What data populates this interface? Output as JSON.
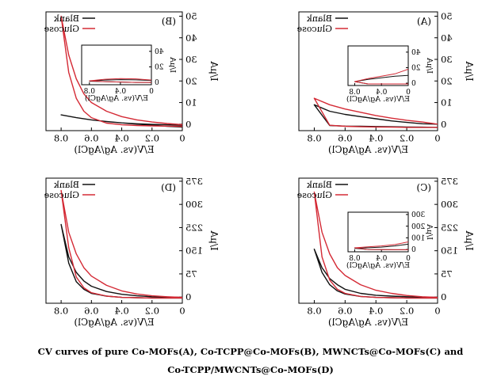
{
  "caption": {
    "line1": "CV curves of pure Co-MOFs(A), Co-TCPP@Co-MOFs(B), MWNCTs@Co-MOFs(C) and",
    "line2": "Co-TCPP/MWCNTs@Co-MOFs(D)"
  },
  "colors": {
    "blank": "#111111",
    "glucose": "#d42a35"
  },
  "chart_data": [
    {
      "panel": "A",
      "type": "line",
      "xlabel": "E/V(vs. Ag/AgCl)",
      "ylabel": "I/μA",
      "xlim": [
        0,
        0.9
      ],
      "ylim": [
        -3,
        52
      ],
      "xticks": [
        "0",
        "0.2",
        "0.4",
        "0.6",
        "0.8"
      ],
      "yticks": [
        "0",
        "10",
        "20",
        "30",
        "40",
        "50"
      ],
      "legend": "top-left",
      "series": [
        {
          "name": "Blank",
          "x": [
            0,
            0.1,
            0.2,
            0.3,
            0.4,
            0.5,
            0.6,
            0.7,
            0.8,
            0.8,
            0.7,
            0.6,
            0.5,
            0.4,
            0.3,
            0.2,
            0.1,
            0
          ],
          "y": [
            -1.5,
            -1.4,
            -1.3,
            -1.2,
            -1.1,
            -1.0,
            -0.9,
            -0.6,
            9,
            9,
            6,
            4.5,
            3.5,
            2.5,
            1.5,
            0.8,
            0.2,
            0
          ]
        },
        {
          "name": "Glucose",
          "x": [
            0,
            0.1,
            0.2,
            0.3,
            0.4,
            0.5,
            0.6,
            0.7,
            0.8,
            0.8,
            0.7,
            0.6,
            0.5,
            0.4,
            0.3,
            0.2,
            0.1,
            0
          ],
          "y": [
            -1.5,
            -1.5,
            -1.5,
            -1.4,
            -1.3,
            -1.2,
            -1.0,
            -0.5,
            12,
            12,
            9,
            7,
            5.5,
            4,
            2.8,
            1.8,
            1,
            0
          ]
        }
      ],
      "inset": {
        "xlabel": "E/V(vs. Ag/AgCl)",
        "ylabel": "I/μA",
        "xlim": [
          0,
          0.9
        ],
        "ylim": [
          -3,
          48
        ],
        "xticks": [
          "0",
          "0.4",
          "0.8"
        ],
        "yticks": [
          "0",
          "20",
          "40"
        ],
        "series": [
          {
            "name": "Blank",
            "x": [
              0,
              0.2,
              0.4,
              0.6,
              0.8,
              0.8,
              0.6,
              0.4,
              0.2,
              0
            ],
            "y": [
              -1,
              -1,
              -1,
              -1,
              2,
              2,
              5,
              7,
              9,
              10
            ]
          },
          {
            "name": "Glucose",
            "x": [
              0,
              0.2,
              0.4,
              0.6,
              0.8,
              0.8,
              0.6,
              0.4,
              0.2,
              0
            ],
            "y": [
              -1,
              -1,
              -1,
              -1,
              2,
              2,
              6,
              9,
              12,
              18
            ]
          }
        ]
      }
    },
    {
      "panel": "B",
      "type": "line",
      "xlabel": "E/V(vs. Ag/AgCl)",
      "ylabel": "I/μA",
      "xlim": [
        0,
        0.9
      ],
      "ylim": [
        -3,
        52
      ],
      "xticks": [
        "0",
        "0.2",
        "0.4",
        "0.6",
        "0.8"
      ],
      "yticks": [
        "0",
        "10",
        "20",
        "30",
        "40",
        "50"
      ],
      "legend": "top-left",
      "series": [
        {
          "name": "Blank",
          "x": [
            0,
            0.1,
            0.2,
            0.3,
            0.4,
            0.5,
            0.6,
            0.7,
            0.8,
            0.8,
            0.7,
            0.6,
            0.5,
            0.4,
            0.3,
            0.2,
            0.1,
            0
          ],
          "y": [
            -1.3,
            -1.0,
            -0.5,
            0,
            0.6,
            1.2,
            2,
            3,
            4.3,
            4.3,
            3,
            2,
            1.2,
            0.6,
            0.2,
            -0.1,
            -0.3,
            -0.5
          ]
        },
        {
          "name": "Glucose",
          "x": [
            0,
            0.1,
            0.2,
            0.3,
            0.4,
            0.5,
            0.6,
            0.65,
            0.7,
            0.75,
            0.8,
            0.8,
            0.75,
            0.7,
            0.65,
            0.6,
            0.5,
            0.4,
            0.3,
            0.2,
            0.1,
            0
          ],
          "y": [
            -1.0,
            -0.9,
            -0.8,
            -0.6,
            -0.3,
            0.5,
            3,
            6,
            12,
            24,
            50,
            50,
            32,
            21,
            14,
            10,
            6,
            3.5,
            2,
            1,
            0.3,
            -0.2
          ]
        }
      ],
      "inset": {
        "xlabel": "E/V(vs. Ag/AgCl)",
        "ylabel": "I/μA",
        "xlim": [
          0,
          0.9
        ],
        "ylim": [
          -3,
          48
        ],
        "xticks": [
          "0",
          "0.4",
          "0.8"
        ],
        "yticks": [
          "0",
          "20",
          "40"
        ],
        "series": [
          {
            "name": "Blank",
            "x": [
              0,
              0.2,
              0.4,
              0.6,
              0.8,
              0.8,
              0.6,
              0.4,
              0.2,
              0
            ],
            "y": [
              0,
              0,
              0.5,
              1,
              1.5,
              1.5,
              3,
              3.5,
              3.2,
              2.5
            ]
          },
          {
            "name": "Glucose",
            "x": [
              0,
              0.2,
              0.4,
              0.6,
              0.8,
              0.8,
              0.6,
              0.4,
              0.2,
              0
            ],
            "y": [
              0,
              0,
              0.5,
              1,
              2,
              2,
              4,
              5,
              4.5,
              3
            ]
          }
        ]
      }
    },
    {
      "panel": "C",
      "type": "line",
      "xlabel": "E/V(vs. Ag/AgCl)",
      "ylabel": "I/μA",
      "xlim": [
        0,
        0.9
      ],
      "ylim": [
        -20,
        385
      ],
      "xticks": [
        "0",
        "0.2",
        "0.4",
        "0.6",
        "0.8"
      ],
      "yticks": [
        "0",
        "75",
        "150",
        "225",
        "300",
        "375"
      ],
      "legend": "top-left",
      "series": [
        {
          "name": "Blank",
          "x": [
            0,
            0.1,
            0.2,
            0.3,
            0.4,
            0.5,
            0.6,
            0.65,
            0.7,
            0.75,
            0.8,
            0.8,
            0.75,
            0.7,
            0.65,
            0.6,
            0.5,
            0.4,
            0.3,
            0.2,
            0.1,
            0
          ],
          "y": [
            -3,
            -3,
            -3,
            -2,
            -1,
            2,
            10,
            20,
            40,
            80,
            155,
            155,
            95,
            60,
            40,
            25,
            12,
            6,
            3,
            1,
            0,
            -1
          ]
        },
        {
          "name": "Glucose",
          "x": [
            0,
            0.1,
            0.2,
            0.3,
            0.4,
            0.5,
            0.6,
            0.65,
            0.7,
            0.75,
            0.8,
            0.8,
            0.75,
            0.7,
            0.65,
            0.6,
            0.5,
            0.4,
            0.3,
            0.2,
            0.1,
            0
          ],
          "y": [
            -3,
            -3,
            -3,
            -2,
            -1,
            2,
            12,
            25,
            55,
            130,
            340,
            340,
            210,
            140,
            95,
            70,
            40,
            22,
            12,
            5,
            1,
            -1
          ]
        }
      ],
      "inset": {
        "xlabel": "E/V(vs. Ag/AgCl)",
        "ylabel": "I/μA",
        "xlim": [
          0,
          0.9
        ],
        "ylim": [
          -20,
          320
        ],
        "xticks": [
          "0",
          "0.4",
          "0.8"
        ],
        "yticks": [
          "0",
          "100",
          "200",
          "300"
        ],
        "series": [
          {
            "name": "Blank",
            "x": [
              0,
              0.2,
              0.4,
              0.6,
              0.8,
              0.8,
              0.6,
              0.4,
              0.2,
              0
            ],
            "y": [
              -2,
              -2,
              -1,
              0,
              10,
              10,
              15,
              20,
              30,
              45
            ]
          },
          {
            "name": "Glucose",
            "x": [
              0,
              0.2,
              0.4,
              0.6,
              0.8,
              0.8,
              0.6,
              0.4,
              0.2,
              0
            ],
            "y": [
              -2,
              -2,
              -1,
              0,
              14,
              14,
              22,
              30,
              42,
              65
            ]
          }
        ]
      }
    },
    {
      "panel": "D",
      "type": "line",
      "xlabel": "E/V(vs. Ag/AgCl)",
      "ylabel": "I/μA",
      "xlim": [
        0,
        0.9
      ],
      "ylim": [
        -20,
        385
      ],
      "xticks": [
        "0",
        "0.2",
        "0.4",
        "0.6",
        "0.8"
      ],
      "yticks": [
        "0",
        "75",
        "150",
        "225",
        "300",
        "375"
      ],
      "legend": "top-left",
      "series": [
        {
          "name": "Blank",
          "x": [
            0,
            0.1,
            0.2,
            0.3,
            0.4,
            0.5,
            0.6,
            0.65,
            0.7,
            0.75,
            0.8,
            0.8,
            0.75,
            0.7,
            0.65,
            0.6,
            0.5,
            0.4,
            0.3,
            0.2,
            0.1,
            0
          ],
          "y": [
            -3,
            -3,
            -3,
            -2,
            -1,
            3,
            12,
            25,
            50,
            110,
            235,
            235,
            130,
            80,
            52,
            35,
            18,
            9,
            4,
            1,
            0,
            -1
          ]
        },
        {
          "name": "Glucose",
          "x": [
            0,
            0.1,
            0.2,
            0.3,
            0.4,
            0.5,
            0.6,
            0.65,
            0.7,
            0.75,
            0.8,
            0.8,
            0.75,
            0.7,
            0.65,
            0.6,
            0.5,
            0.4,
            0.3,
            0.2,
            0.1,
            0
          ],
          "y": [
            -3,
            -3,
            -3,
            -2,
            -1,
            3,
            14,
            30,
            65,
            160,
            345,
            345,
            210,
            140,
            95,
            68,
            38,
            20,
            10,
            4,
            1,
            -1
          ]
        }
      ]
    }
  ]
}
